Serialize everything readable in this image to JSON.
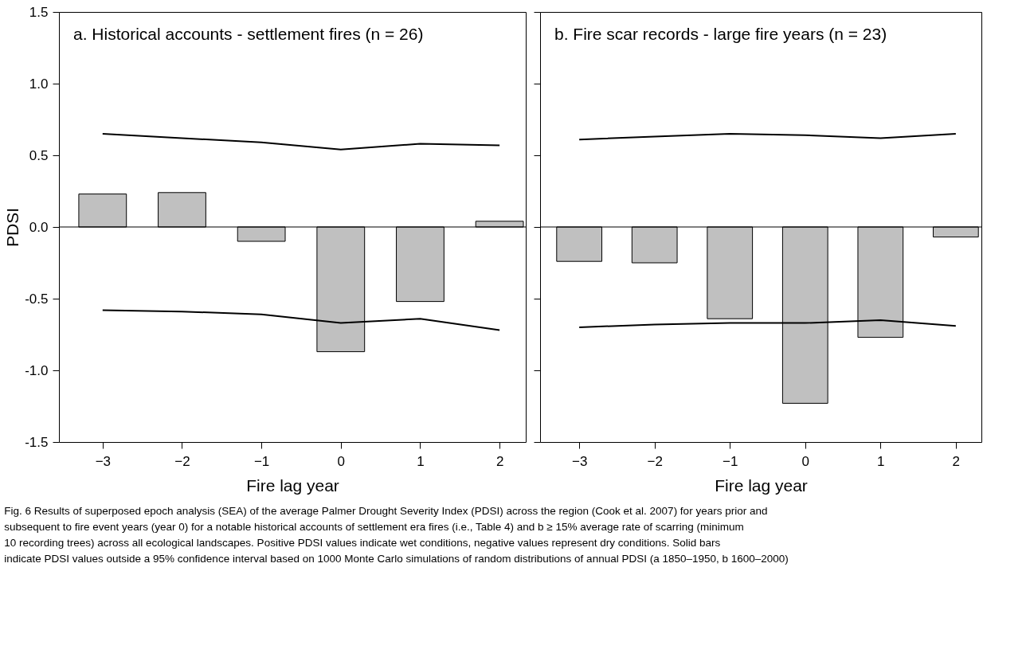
{
  "chart_data": [
    {
      "type": "bar",
      "ylabel": "PDSI",
      "xlabel": "Fire lag year",
      "x": [
        -3,
        -2,
        -1,
        0,
        1,
        2
      ],
      "xlim": [
        -3.55,
        2.33
      ],
      "xticks": [
        -3,
        -2,
        -1,
        0,
        1,
        2
      ],
      "ylim": [
        -1.5,
        1.5
      ],
      "yticks": [
        -1.5,
        {
          "value": -1.0,
          "label": "-1.0"
        },
        -0.5,
        {
          "value": 0.0,
          "label": "0.0"
        },
        0.5,
        {
          "value": 1.0,
          "label": "1.0"
        },
        1.5
      ],
      "grid": false,
      "ref_lines": [
        {
          "axis": "y",
          "value": 0
        }
      ],
      "series": [
        {
          "color": "#c0c0c0",
          "values": [
            0.23,
            0.24,
            -0.1,
            -0.87,
            -0.52,
            0.04
          ]
        },
        {
          "type": "line",
          "color": "#000000",
          "values": [
            0.65,
            0.62,
            0.59,
            0.54,
            0.58,
            0.57
          ]
        },
        {
          "type": "line",
          "color": "#000000",
          "values": [
            -0.58,
            -0.59,
            -0.61,
            -0.67,
            -0.64,
            -0.72
          ]
        }
      ],
      "annotations": [
        "a.  Historical accounts - settlement fires (n = 26)",
        "Fig. 6  Results of superposed epoch analysis (SEA) of the average Palmer Drought Severity Index (PDSI) across the region (Cook et al. 2007) for years prior and subsequent to fire event years (year 0) for a notable historical accounts of settlement era fires (i.e., Table 4) and b ≥ 15% average rate of scarring (minimum 10 recording trees) across all ecological landscapes. Positive PDSI values indicate wet conditions, negative values represent dry conditions. Solid bars indicate PDSI values outside a 95% confidence interval based on 1000 Monte Carlo simulations of random distributions of annual PDSI (a 1850–1950, b 1600–2000)"
      ]
    },
    {
      "type": "bar",
      "xlabel": "Fire lag year",
      "x": [
        -3,
        -2,
        -1,
        0,
        1,
        2
      ],
      "xlim": [
        -3.52,
        2.34
      ],
      "xticks": [
        -3,
        -2,
        -1,
        0,
        1,
        2
      ],
      "ylim": [
        -1.5,
        1.5
      ],
      "yticks": [
        -1.5,
        -1.0,
        -0.5,
        0.0,
        0.5,
        1.0,
        1.5
      ],
      "tick_labels": "x",
      "grid": false,
      "ref_lines": [
        {
          "axis": "y",
          "value": 0
        }
      ],
      "series": [
        {
          "color": "#c0c0c0",
          "values": [
            -0.24,
            -0.25,
            -0.64,
            -1.23,
            -0.77,
            -0.07
          ]
        },
        {
          "type": "line",
          "color": "#000000",
          "values": [
            0.61,
            0.63,
            0.65,
            0.64,
            0.62,
            0.65
          ]
        },
        {
          "type": "line",
          "color": "#000000",
          "values": [
            -0.7,
            -0.68,
            -0.67,
            -0.67,
            -0.65,
            -0.69
          ]
        }
      ],
      "annotations": [
        "b.  Fire scar records - large fire years (n = 23)"
      ]
    }
  ]
}
